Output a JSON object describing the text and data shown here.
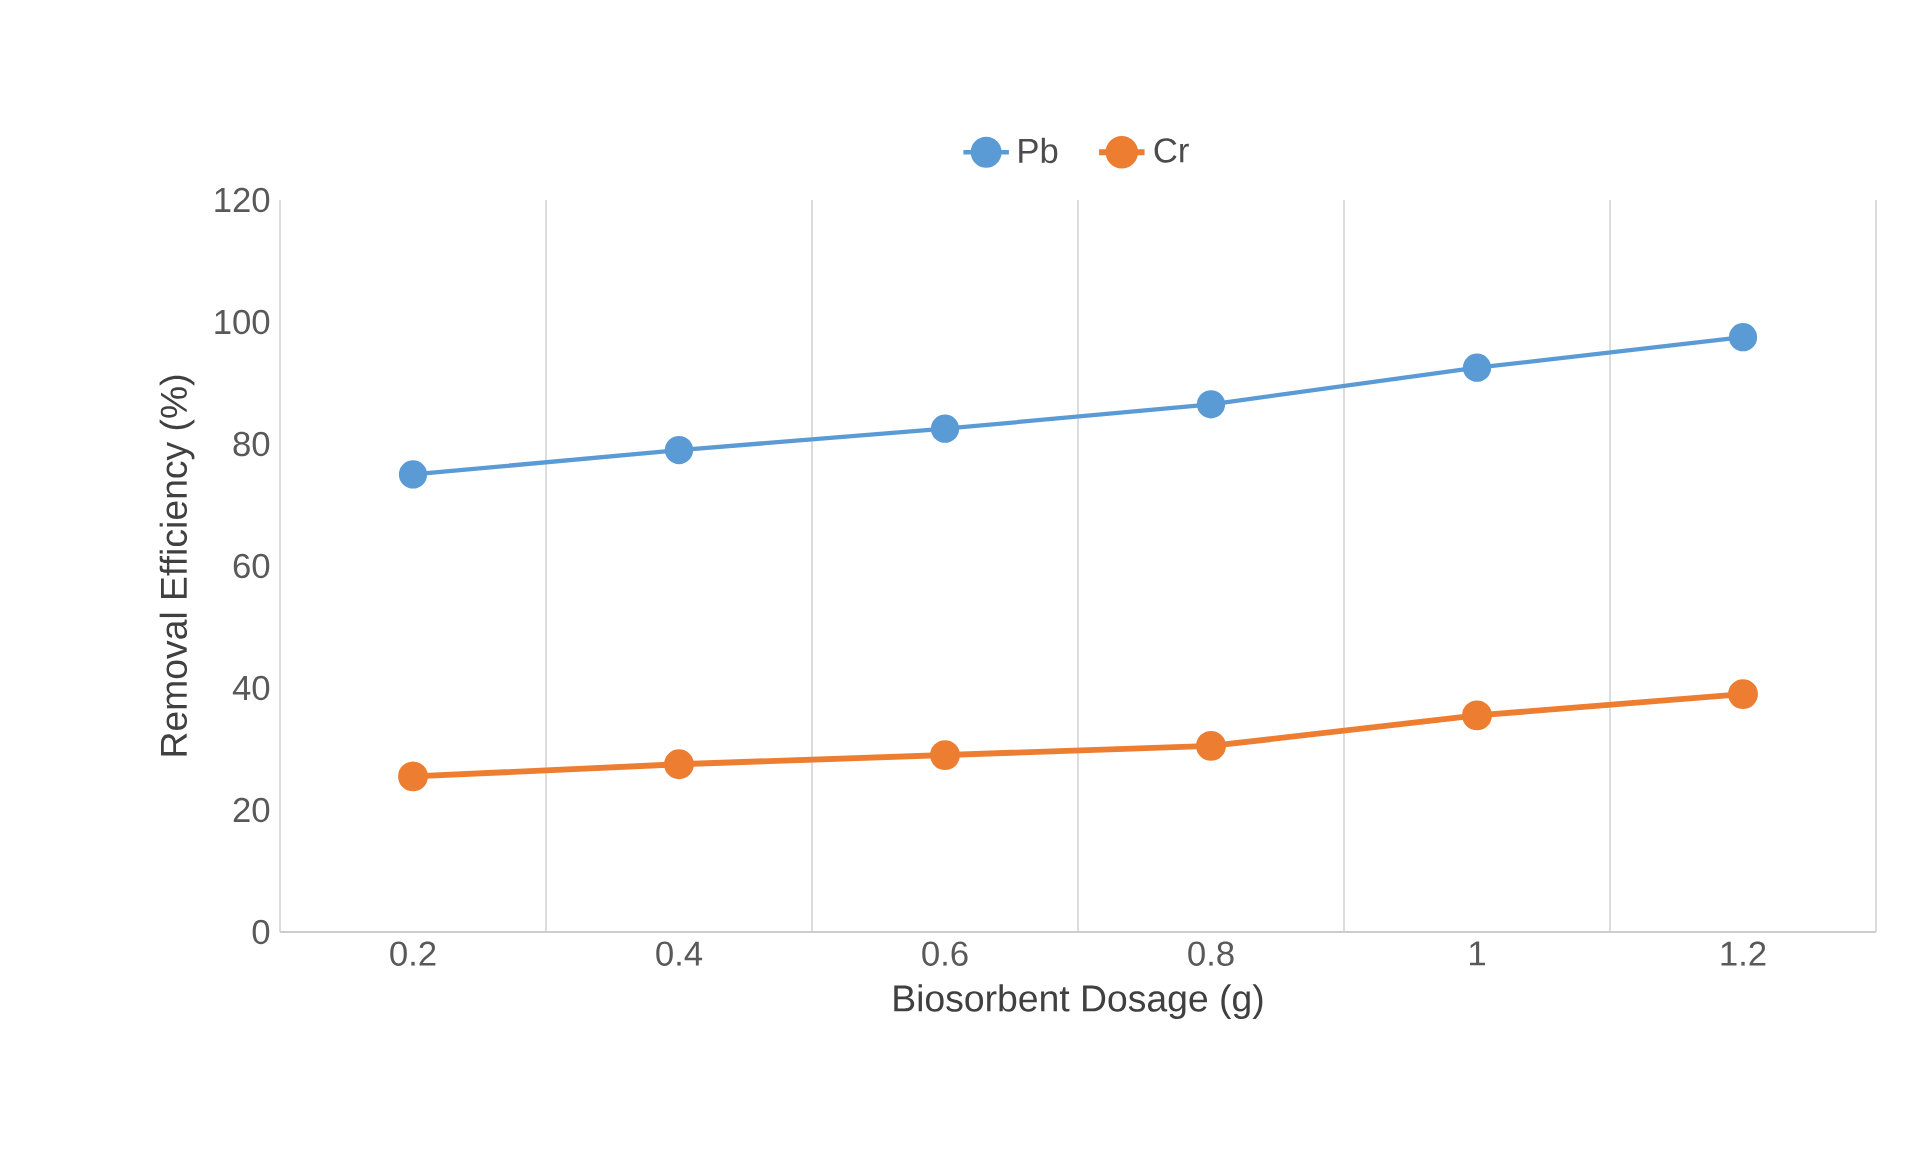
{
  "chart_data": {
    "type": "line",
    "xlabel": "Biosorbent Dosage (g)",
    "ylabel": "Removal Efficiency (%)",
    "categories": [
      "0.2",
      "0.4",
      "0.6",
      "0.8",
      "1",
      "1.2"
    ],
    "series": [
      {
        "name": "Pb",
        "color": "#5b9bd5",
        "values": [
          75,
          79,
          82.5,
          86.5,
          92.5,
          97.5
        ]
      },
      {
        "name": "Cr",
        "color": "#ed7d31",
        "values": [
          25.5,
          27.5,
          29,
          30.5,
          35.5,
          39
        ]
      }
    ],
    "ylim": [
      0,
      120
    ],
    "yticks": [
      0,
      20,
      40,
      60,
      80,
      100,
      120
    ],
    "grid": "x",
    "legend": "top",
    "marker": "circle",
    "line_style": "solid"
  }
}
